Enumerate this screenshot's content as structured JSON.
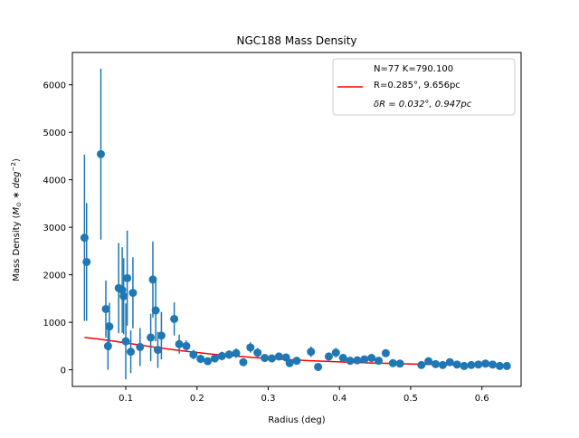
{
  "chart_data": {
    "type": "scatter",
    "title": "NGC188 Mass Density",
    "xlabel": "Radius (deg)",
    "ylabel": {
      "before": "Mass Density (",
      "m": "M",
      "sun": "⊙",
      "mid": " ∗ ",
      "deg": "deg",
      "exp": "−2",
      "after": ")"
    },
    "xlim": [
      0.025,
      0.655
    ],
    "ylim": [
      -350,
      6680
    ],
    "xticks": [
      0.1,
      0.2,
      0.3,
      0.4,
      0.5,
      0.6
    ],
    "xtick_labels": [
      "0.1",
      "0.2",
      "0.3",
      "0.4",
      "0.5",
      "0.6"
    ],
    "yticks": [
      0,
      1000,
      2000,
      3000,
      4000,
      5000,
      6000
    ],
    "ytick_labels": [
      "0",
      "1000",
      "2000",
      "3000",
      "4000",
      "5000",
      "6000"
    ],
    "grid": false,
    "legend_position": "top-right",
    "legend": [
      "N=77   K=790.100",
      "R=0.285°, 9.656pc",
      "δR = 0.032°, 0.947pc"
    ],
    "colors": {
      "points": "#1f77b4",
      "fit": "#ff0000"
    },
    "series": [
      {
        "type": "errorbar",
        "points": [
          [
            0.042,
            2780,
            1750
          ],
          [
            0.045,
            2270,
            1240
          ],
          [
            0.065,
            4540,
            1800
          ],
          [
            0.072,
            1280,
            600
          ],
          [
            0.075,
            500,
            500
          ],
          [
            0.077,
            910,
            500
          ],
          [
            0.09,
            1720,
            950
          ],
          [
            0.095,
            1680,
            900
          ],
          [
            0.097,
            1550,
            800
          ],
          [
            0.1,
            600,
            800
          ],
          [
            0.102,
            1930,
            1000
          ],
          [
            0.107,
            380,
            450
          ],
          [
            0.11,
            1620,
            750
          ],
          [
            0.12,
            480,
            400
          ],
          [
            0.135,
            680,
            500
          ],
          [
            0.138,
            1900,
            800
          ],
          [
            0.142,
            1250,
            650
          ],
          [
            0.145,
            420,
            380
          ],
          [
            0.15,
            720,
            500
          ],
          [
            0.168,
            1070,
            350
          ],
          [
            0.175,
            540,
            200
          ],
          [
            0.185,
            500,
            120
          ],
          [
            0.195,
            320,
            100
          ],
          [
            0.205,
            230,
            90
          ],
          [
            0.215,
            180,
            80
          ],
          [
            0.225,
            240,
            80
          ],
          [
            0.235,
            290,
            90
          ],
          [
            0.245,
            320,
            90
          ],
          [
            0.255,
            350,
            100
          ],
          [
            0.265,
            160,
            60
          ],
          [
            0.275,
            470,
            110
          ],
          [
            0.285,
            360,
            100
          ],
          [
            0.295,
            250,
            70
          ],
          [
            0.305,
            240,
            70
          ],
          [
            0.315,
            280,
            80
          ],
          [
            0.325,
            260,
            80
          ],
          [
            0.33,
            140,
            60
          ],
          [
            0.34,
            190,
            70
          ],
          [
            0.36,
            380,
            110
          ],
          [
            0.37,
            60,
            40
          ],
          [
            0.385,
            280,
            80
          ],
          [
            0.395,
            360,
            100
          ],
          [
            0.405,
            250,
            80
          ],
          [
            0.415,
            190,
            60
          ],
          [
            0.425,
            200,
            60
          ],
          [
            0.435,
            220,
            60
          ],
          [
            0.445,
            250,
            70
          ],
          [
            0.455,
            190,
            60
          ],
          [
            0.465,
            350,
            80
          ],
          [
            0.475,
            140,
            50
          ],
          [
            0.485,
            130,
            50
          ],
          [
            0.515,
            100,
            40
          ],
          [
            0.525,
            180,
            50
          ],
          [
            0.535,
            120,
            40
          ],
          [
            0.545,
            100,
            40
          ],
          [
            0.555,
            160,
            40
          ],
          [
            0.565,
            110,
            40
          ],
          [
            0.575,
            80,
            30
          ],
          [
            0.585,
            100,
            30
          ],
          [
            0.595,
            110,
            30
          ],
          [
            0.605,
            130,
            30
          ],
          [
            0.615,
            110,
            30
          ],
          [
            0.625,
            80,
            30
          ],
          [
            0.635,
            80,
            30
          ]
        ]
      },
      {
        "type": "line",
        "x": [
          0.042,
          0.06,
          0.08,
          0.1,
          0.12,
          0.14,
          0.16,
          0.18,
          0.2,
          0.22,
          0.24,
          0.26,
          0.28,
          0.3,
          0.32,
          0.34,
          0.36,
          0.38,
          0.4,
          0.42,
          0.44,
          0.46,
          0.48,
          0.5,
          0.52,
          0.54,
          0.56,
          0.58,
          0.6,
          0.62,
          0.635
        ],
        "y": [
          680,
          650,
          610,
          565,
          520,
          477,
          436,
          398,
          364,
          332,
          304,
          280,
          258,
          238,
          221,
          205,
          191,
          178,
          166,
          156,
          146,
          138,
          130,
          123,
          116,
          110,
          104,
          99,
          94,
          90,
          87
        ]
      }
    ]
  }
}
